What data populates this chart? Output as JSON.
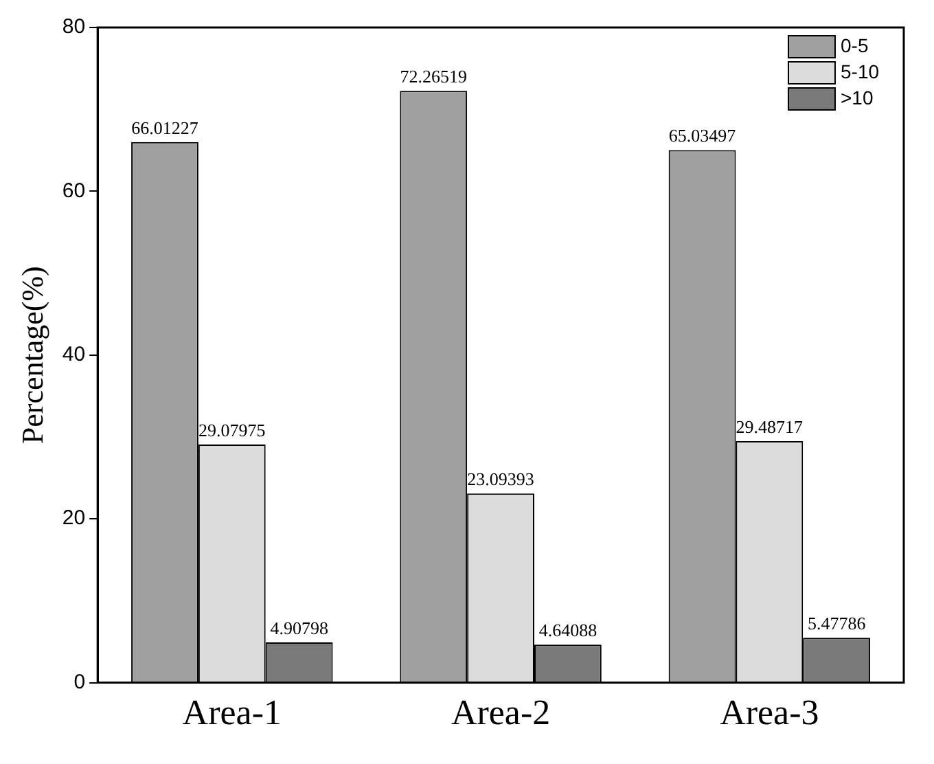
{
  "chart_data": {
    "type": "bar",
    "ylabel": "Percentage(%)",
    "categories": [
      "Area-1",
      "Area-2",
      "Area-3"
    ],
    "series": [
      {
        "name": "0-5",
        "color": "#a0a0a0",
        "values": [
          66.01227,
          72.26519,
          65.03497
        ]
      },
      {
        "name": "5-10",
        "color": "#dcdcdc",
        "values": [
          29.07975,
          23.09393,
          29.48717
        ]
      },
      {
        "name": ">10",
        "color": "#7a7a7a",
        "values": [
          4.90798,
          4.64088,
          5.47786
        ]
      }
    ],
    "ylim": [
      0,
      80
    ],
    "yticks": [
      0,
      20,
      40,
      60,
      80
    ],
    "grid": false,
    "legend": "top right",
    "data_labels": true
  }
}
